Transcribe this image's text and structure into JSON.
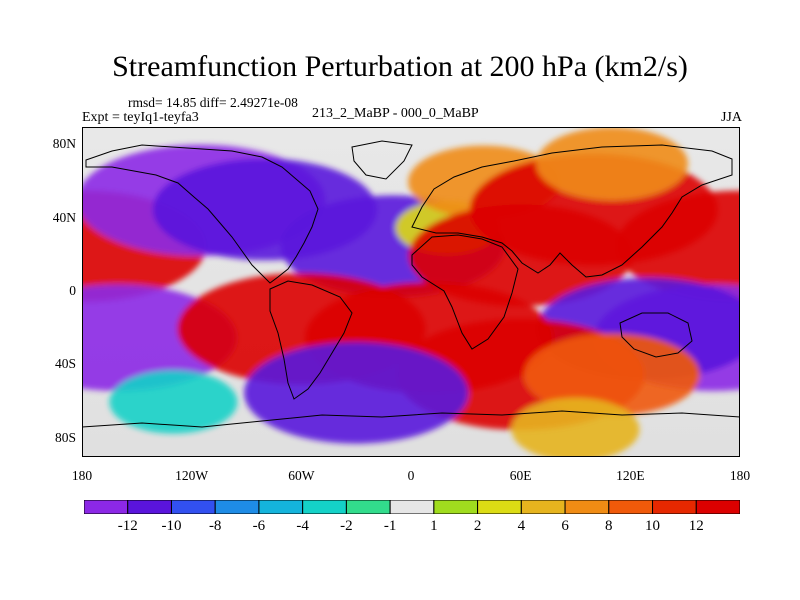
{
  "figure": {
    "title": "Streamfunction Perturbation at 200 hPa (km2/s)",
    "stats_line": "rmsd= 14.85 diff= 2.49271e-08",
    "expt_line": "Expt = teyIq1-teyfa3",
    "center_line": "213_2_MaBP - 000_0_MaBP",
    "season": "JJA"
  },
  "axes": {
    "y_ticks": [
      {
        "label": "80N",
        "value": 80
      },
      {
        "label": "40N",
        "value": 40
      },
      {
        "label": "0",
        "value": 0
      },
      {
        "label": "40S",
        "value": -40
      },
      {
        "label": "80S",
        "value": -80
      }
    ],
    "x_ticks": [
      {
        "label": "180",
        "value": -180
      },
      {
        "label": "120W",
        "value": -120
      },
      {
        "label": "60W",
        "value": -60
      },
      {
        "label": "0",
        "value": 0
      },
      {
        "label": "60E",
        "value": 60
      },
      {
        "label": "120E",
        "value": 120
      },
      {
        "label": "180",
        "value": 180
      }
    ]
  },
  "colorbar": {
    "colors": [
      "#8c28e6",
      "#5a14dc",
      "#3250f0",
      "#1e8ce6",
      "#14b4dc",
      "#14d2c8",
      "#32dc8c",
      "#e6e6e6",
      "#a0dc1e",
      "#dcdc14",
      "#e6b41e",
      "#f08c14",
      "#f05a0a",
      "#e62800",
      "#dc0000"
    ],
    "labels": [
      {
        "text": "-12",
        "boundary": 1
      },
      {
        "text": "-10",
        "boundary": 2
      },
      {
        "text": "-8",
        "boundary": 3
      },
      {
        "text": "-6",
        "boundary": 4
      },
      {
        "text": "-4",
        "boundary": 5
      },
      {
        "text": "-2",
        "boundary": 6
      },
      {
        "text": "-1",
        "boundary": 7
      },
      {
        "text": "1",
        "boundary": 8
      },
      {
        "text": "2",
        "boundary": 9
      },
      {
        "text": "4",
        "boundary": 10
      },
      {
        "text": "6",
        "boundary": 11
      },
      {
        "text": "8",
        "boundary": 12
      },
      {
        "text": "10",
        "boundary": 13
      },
      {
        "text": "12",
        "boundary": 14
      }
    ]
  },
  "chart_data": {
    "type": "heatmap",
    "title": "Streamfunction Perturbation at 200 hPa (km2/s)",
    "x_range": [
      -180,
      180
    ],
    "y_range": [
      -90,
      90
    ],
    "levels": [
      -12,
      -10,
      -8,
      -6,
      -4,
      -2,
      -1,
      1,
      2,
      4,
      6,
      8,
      10,
      12
    ],
    "features": [
      {
        "lon": -180,
        "lat": 25,
        "value": 14
      },
      {
        "lon": 180,
        "lat": 25,
        "value": 14
      },
      {
        "lon": -115,
        "lat": 50,
        "value": -14
      },
      {
        "lon": -80,
        "lat": 45,
        "value": -12
      },
      {
        "lon": -10,
        "lat": 25,
        "value": -12
      },
      {
        "lon": 20,
        "lat": 35,
        "value": 2
      },
      {
        "lon": 40,
        "lat": 60,
        "value": 6
      },
      {
        "lon": 100,
        "lat": 45,
        "value": 14
      },
      {
        "lon": 60,
        "lat": 20,
        "value": 12
      },
      {
        "lon": 110,
        "lat": 70,
        "value": 6
      },
      {
        "lon": -160,
        "lat": -25,
        "value": -13
      },
      {
        "lon": 165,
        "lat": -25,
        "value": -13
      },
      {
        "lon": 130,
        "lat": -20,
        "value": -12
      },
      {
        "lon": -60,
        "lat": -20,
        "value": 14
      },
      {
        "lon": 10,
        "lat": -25,
        "value": 14
      },
      {
        "lon": 60,
        "lat": -45,
        "value": 14
      },
      {
        "lon": 110,
        "lat": -45,
        "value": 8
      },
      {
        "lon": -30,
        "lat": -55,
        "value": -12
      },
      {
        "lon": -130,
        "lat": -60,
        "value": -4
      },
      {
        "lon": 90,
        "lat": -75,
        "value": 4
      }
    ]
  }
}
